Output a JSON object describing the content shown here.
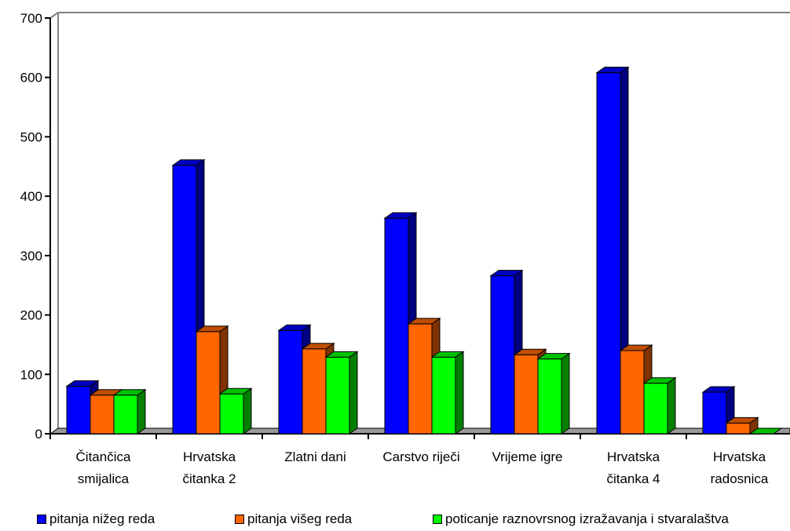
{
  "chart_data": {
    "type": "bar",
    "categories": [
      [
        "Čitančica",
        "smijalica"
      ],
      [
        "Hrvatska",
        "čitanka 2"
      ],
      [
        "Zlatni dani"
      ],
      [
        "Carstvo riječi"
      ],
      [
        "Vrijeme igre"
      ],
      [
        "Hrvatska",
        "čitanka 4"
      ],
      [
        "Hrvatska",
        "radosnica"
      ]
    ],
    "series": [
      {
        "name": "pitanja nižeg reda",
        "values": [
          80,
          452,
          174,
          363,
          266,
          608,
          70
        ]
      },
      {
        "name": "pitanja višeg reda",
        "values": [
          65,
          172,
          143,
          185,
          133,
          140,
          18
        ]
      },
      {
        "name": "poticanje raznovrsnog izražavanja i stvaralaštva",
        "values": [
          65,
          67,
          129,
          129,
          126,
          85,
          0
        ]
      }
    ],
    "yticks": [
      "0",
      "100",
      "200",
      "300",
      "400",
      "500",
      "600",
      "700"
    ],
    "ylim": [
      0,
      700
    ],
    "grid": false,
    "legend_position": "bottom",
    "colors": {
      "front": [
        "#0000ff",
        "#ff6600",
        "#00ff00"
      ],
      "side": [
        "#000080",
        "#803300",
        "#008000"
      ],
      "top": [
        "#0000c0",
        "#c04d00",
        "#00c000"
      ]
    }
  }
}
